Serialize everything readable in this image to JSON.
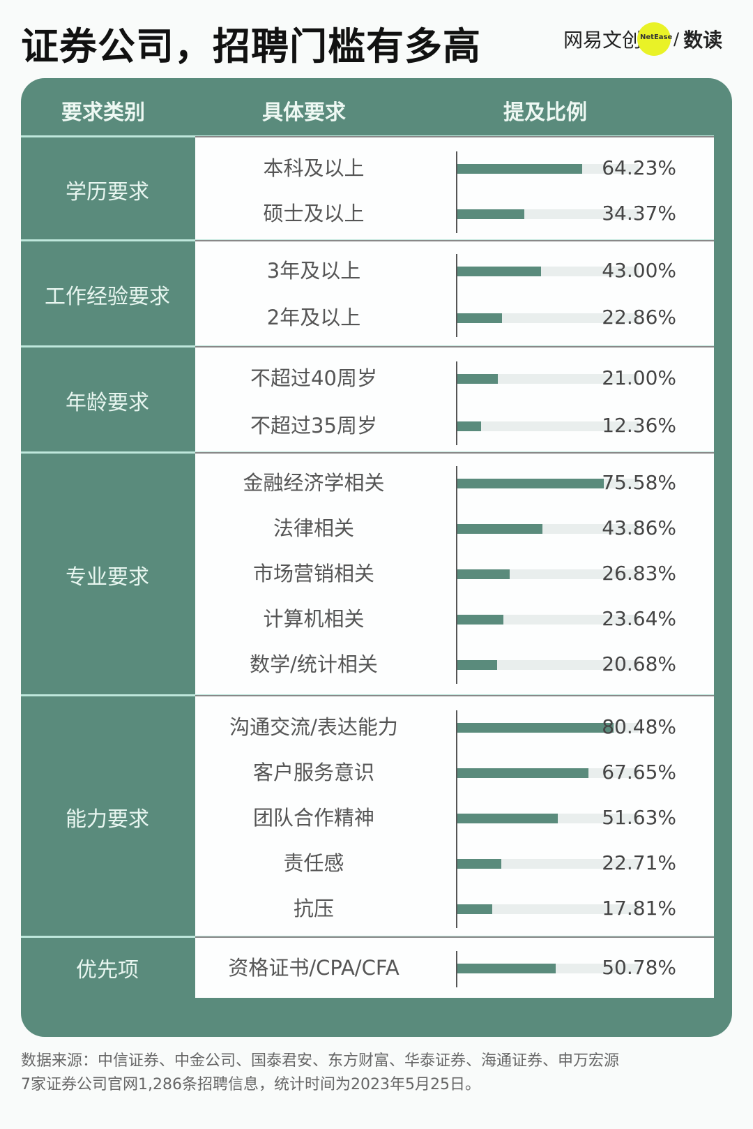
{
  "header": {
    "title": "证券公司，招聘门槛有多高",
    "brand_left": "网易文创",
    "brand_badge": "NetEase",
    "brand_slash": "/",
    "brand_right": "数读"
  },
  "table": {
    "columns": [
      "要求类别",
      "具体要求",
      "提及比例"
    ],
    "groups": [
      {
        "category": "学历要求",
        "items": [
          {
            "label": "本科及以上",
            "value": 64.23,
            "display": "64.23%"
          },
          {
            "label": "硕士及以上",
            "value": 34.37,
            "display": "34.37%"
          }
        ]
      },
      {
        "category": "工作经验要求",
        "items": [
          {
            "label": "3年及以上",
            "value": 43.0,
            "display": "43.00%"
          },
          {
            "label": "2年及以上",
            "value": 22.86,
            "display": "22.86%"
          }
        ]
      },
      {
        "category": "年龄要求",
        "items": [
          {
            "label": "不超过40周岁",
            "value": 21.0,
            "display": "21.00%"
          },
          {
            "label": "不超过35周岁",
            "value": 12.36,
            "display": "12.36%"
          }
        ]
      },
      {
        "category": "专业要求",
        "items": [
          {
            "label": "金融经济学相关",
            "value": 75.58,
            "display": "75.58%"
          },
          {
            "label": "法律相关",
            "value": 43.86,
            "display": "43.86%"
          },
          {
            "label": "市场营销相关",
            "value": 26.83,
            "display": "26.83%"
          },
          {
            "label": "计算机相关",
            "value": 23.64,
            "display": "23.64%"
          },
          {
            "label": "数学/统计相关",
            "value": 20.68,
            "display": "20.68%"
          }
        ]
      },
      {
        "category": "能力要求",
        "items": [
          {
            "label": "沟通交流/表达能力",
            "value": 80.48,
            "display": "80.48%"
          },
          {
            "label": "客户服务意识",
            "value": 67.65,
            "display": "67.65%"
          },
          {
            "label": "团队合作精神",
            "value": 51.63,
            "display": "51.63%"
          },
          {
            "label": "责任感",
            "value": 22.71,
            "display": "22.71%"
          },
          {
            "label": "抗压",
            "value": 17.81,
            "display": "17.81%"
          }
        ]
      },
      {
        "category": "优先项",
        "items": [
          {
            "label": "资格证书/CPA/CFA",
            "value": 50.78,
            "display": "50.78%"
          }
        ]
      }
    ]
  },
  "footer": {
    "line1": "数据来源：中信证券、中金公司、国泰君安、东方财富、华泰证券、海通证券、申万宏源",
    "line2": "7家证券公司官网1,286条招聘信息，统计时间为2023年5月25日。"
  },
  "colors": {
    "accent": "#5a8b7c",
    "track": "#e9eeed",
    "divider": "#bfe7dc",
    "brand_dot": "#e9f227"
  },
  "chart_data": {
    "type": "bar",
    "title": "证券公司，招聘门槛有多高",
    "orientation": "horizontal",
    "xlabel": "提及比例",
    "ylabel": "具体要求",
    "xlim": [
      0,
      100
    ],
    "grid": false,
    "legend": null,
    "groups": [
      "学历要求",
      "学历要求",
      "工作经验要求",
      "工作经验要求",
      "年龄要求",
      "年龄要求",
      "专业要求",
      "专业要求",
      "专业要求",
      "专业要求",
      "专业要求",
      "能力要求",
      "能力要求",
      "能力要求",
      "能力要求",
      "能力要求",
      "优先项"
    ],
    "categories": [
      "本科及以上",
      "硕士及以上",
      "3年及以上",
      "2年及以上",
      "不超过40周岁",
      "不超过35周岁",
      "金融经济学相关",
      "法律相关",
      "市场营销相关",
      "计算机相关",
      "数学/统计相关",
      "沟通交流/表达能力",
      "客户服务意识",
      "团队合作精神",
      "责任感",
      "抗压",
      "资格证书/CPA/CFA"
    ],
    "values": [
      64.23,
      34.37,
      43.0,
      22.86,
      21.0,
      12.36,
      75.58,
      43.86,
      26.83,
      23.64,
      20.68,
      80.48,
      67.65,
      51.63,
      22.71,
      17.81,
      50.78
    ],
    "unit": "%",
    "source": "数据来源：中信证券、中金公司、国泰君安、东方财富、华泰证券、海通证券、申万宏源7家证券公司官网1,286条招聘信息，统计时间为2023年5月25日。"
  }
}
